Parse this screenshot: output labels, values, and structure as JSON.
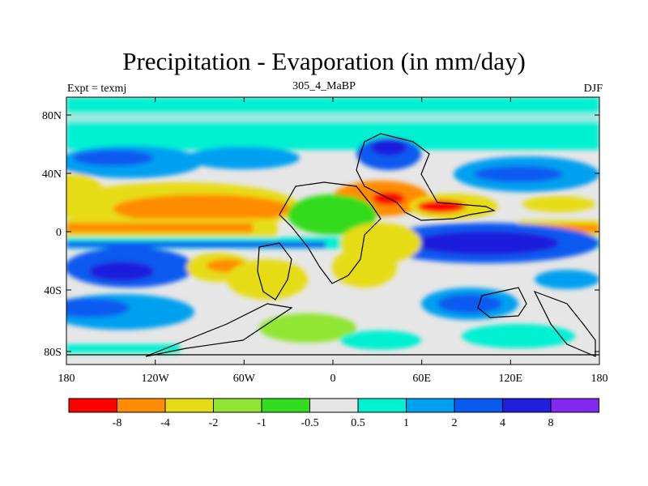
{
  "title": "Precipitation - Evaporation (in mm/day)",
  "experiment_label": "Expt = texmj",
  "period_label": "305_4_MaBP",
  "season_label": "DJF",
  "axes": {
    "x_ticks": [
      "180",
      "120W",
      "60W",
      "0",
      "60E",
      "120E",
      "180"
    ],
    "y_ticks": [
      "80N",
      "40N",
      "0",
      "40S",
      "80S"
    ]
  },
  "colorbar": {
    "colors": [
      "#ff0000",
      "#ff8c00",
      "#e6dc16",
      "#90e632",
      "#32dc1e",
      "#e6e6e6",
      "#00f0d2",
      "#00a0f0",
      "#0a5af0",
      "#1e1edc",
      "#8228f0"
    ],
    "labels": [
      "-8",
      "-4",
      "-2",
      "-1",
      "-0.5",
      "0.5",
      "1",
      "2",
      "4",
      "8"
    ]
  }
}
